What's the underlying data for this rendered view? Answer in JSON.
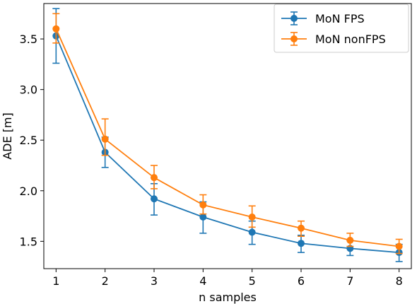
{
  "chart_data": {
    "type": "line",
    "xlabel": "n samples",
    "ylabel": "ADE [m]",
    "xlim": [
      0.75,
      8.25
    ],
    "ylim": [
      1.23,
      3.85
    ],
    "xticks": [
      1,
      2,
      3,
      4,
      5,
      6,
      7,
      8
    ],
    "yticks": [
      1.5,
      2.0,
      2.5,
      3.0,
      3.5
    ],
    "ytick_labels": [
      "1.5",
      "2.0",
      "2.5",
      "3.0",
      "3.5"
    ],
    "grid": false,
    "legend_position": "top-right",
    "x": [
      1,
      2,
      3,
      4,
      5,
      6,
      7,
      8
    ],
    "series": [
      {
        "name": "MoN FPS",
        "color": "#1f77b4",
        "values": [
          3.53,
          2.38,
          1.92,
          1.74,
          1.59,
          1.48,
          1.43,
          1.39
        ],
        "error_low": [
          3.26,
          2.23,
          1.76,
          1.58,
          1.47,
          1.39,
          1.36,
          1.3
        ],
        "error_high": [
          3.8,
          2.53,
          2.07,
          1.89,
          1.7,
          1.56,
          1.51,
          1.47
        ]
      },
      {
        "name": "MoN nonFPS",
        "color": "#ff7f0e",
        "values": [
          3.6,
          2.51,
          2.13,
          1.86,
          1.74,
          1.63,
          1.51,
          1.45
        ],
        "error_low": [
          3.46,
          2.35,
          2.02,
          1.77,
          1.64,
          1.55,
          1.45,
          1.38
        ],
        "error_high": [
          3.75,
          2.71,
          2.25,
          1.96,
          1.85,
          1.7,
          1.58,
          1.52
        ]
      }
    ]
  }
}
